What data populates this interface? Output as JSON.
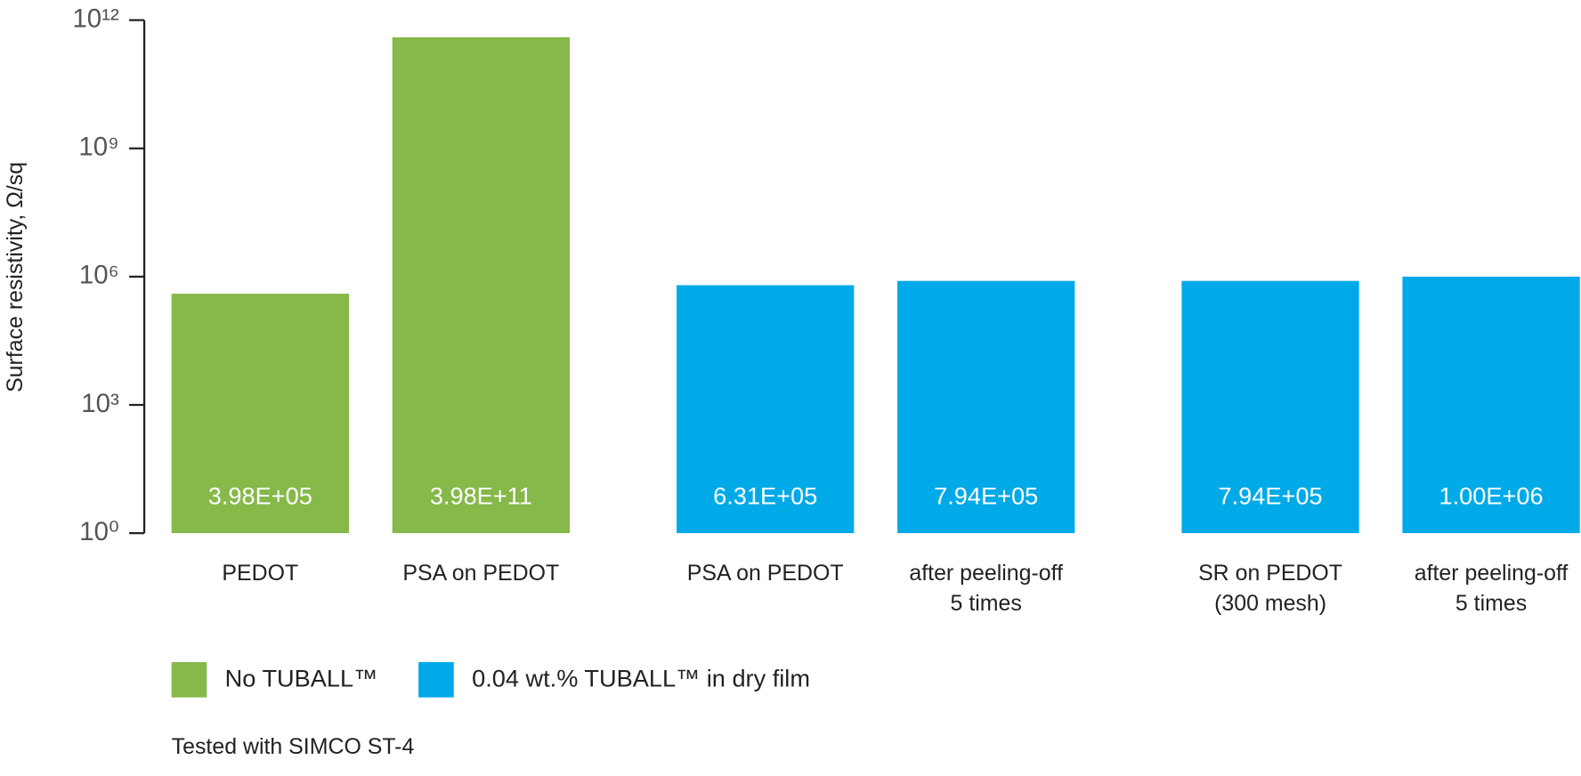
{
  "chart_data": {
    "type": "bar",
    "y_label": "Surface resistivity, Ω/sq",
    "log_y": true,
    "ylim": [
      1,
      1000000000000
    ],
    "yticks": [
      {
        "value": 1,
        "label": "10⁰"
      },
      {
        "value": 1000,
        "label": "10³"
      },
      {
        "value": 1000000,
        "label": "10⁶"
      },
      {
        "value": 1000000000,
        "label": "10⁹"
      },
      {
        "value": 1000000000000,
        "label": "10¹²"
      }
    ],
    "categories": [
      [
        "PEDOT"
      ],
      [
        "PSA on PEDOT"
      ],
      [
        "PSA on PEDOT"
      ],
      [
        "after peeling-off",
        "5 times"
      ],
      [
        "SR on PEDOT",
        "(300 mesh)"
      ],
      [
        "after peeling-off",
        "5 times"
      ]
    ],
    "series": [
      {
        "name": "No TUBALL™",
        "color": "#86b84a",
        "values": [
          398000,
          398000000000,
          null,
          null,
          null,
          null
        ],
        "value_labels": [
          "3.98E+05",
          "3.98E+11",
          null,
          null,
          null,
          null
        ]
      },
      {
        "name": "0.04 wt.% TUBALL™ in dry film",
        "color": "#00aae8",
        "values": [
          null,
          null,
          631000,
          794000,
          794000,
          1000000
        ],
        "value_labels": [
          null,
          null,
          "6.31E+05",
          "7.94E+05",
          "7.94E+05",
          "1.00E+06"
        ]
      }
    ],
    "note": "Tested with SIMCO ST-4"
  }
}
